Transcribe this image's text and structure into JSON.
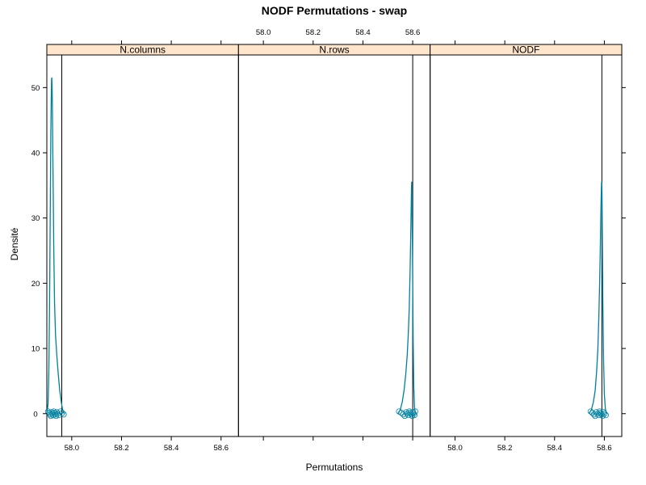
{
  "chart_data": {
    "type": "line",
    "title": "NODF Permutations - swap",
    "xlabel": "Permutations",
    "ylabel": "Densité",
    "xlim": [
      57.9,
      58.67
    ],
    "ylim": [
      -3.5,
      55
    ],
    "x_ticks": [
      58.0,
      58.2,
      58.4,
      58.6
    ],
    "x_tick_labels": [
      "58.0",
      "58.2",
      "58.4",
      "58.6"
    ],
    "y_ticks": [
      0,
      10,
      20,
      30,
      40,
      50
    ],
    "y_tick_labels": [
      "0",
      "10",
      "20",
      "30",
      "40",
      "50"
    ],
    "panels": [
      {
        "strip": "N.columns",
        "observed": 57.96,
        "rug": [
          57.905,
          57.91,
          57.913,
          57.916,
          57.919,
          57.922,
          57.925,
          57.928,
          57.931,
          57.934,
          57.937,
          57.94,
          57.944,
          57.948,
          57.955,
          57.962,
          57.968
        ],
        "density": {
          "x": [
            57.9,
            57.905,
            57.908,
            57.911,
            57.914,
            57.916,
            57.918,
            57.919,
            57.92,
            57.921,
            57.922,
            57.923,
            57.924,
            57.926,
            57.928,
            57.931,
            57.935,
            57.94,
            57.946,
            57.952,
            57.958,
            57.962,
            57.966,
            57.969
          ],
          "y": [
            0,
            1.5,
            6.5,
            17,
            32,
            43,
            49,
            51.3,
            51.5,
            50.5,
            48,
            44,
            40,
            33,
            25,
            17,
            12,
            9,
            6,
            3.5,
            1.8,
            0.9,
            0.3,
            0
          ]
        }
      },
      {
        "strip": "N.rows",
        "observed": 58.6,
        "rug": [
          58.545,
          58.555,
          58.562,
          58.568,
          58.574,
          58.578,
          58.582,
          58.586,
          58.59,
          58.594,
          58.598,
          58.601,
          58.604,
          58.607,
          58.61
        ],
        "density": {
          "x": [
            58.54,
            58.55,
            58.558,
            58.565,
            58.572,
            58.578,
            58.582,
            58.586,
            58.589,
            58.592,
            58.594,
            58.595,
            58.596,
            58.597,
            58.598,
            58.6,
            58.602,
            58.604,
            58.607,
            58.61
          ],
          "y": [
            0,
            0.6,
            1.8,
            3.5,
            6,
            9,
            12,
            16,
            21,
            27,
            32,
            34.5,
            35.5,
            34,
            29,
            20,
            11,
            4.5,
            1.2,
            0
          ]
        }
      },
      {
        "strip": "NODF",
        "observed": 58.59,
        "rug": [
          58.545,
          58.552,
          58.558,
          58.563,
          58.568,
          58.573,
          58.577,
          58.581,
          58.585,
          58.589,
          58.593,
          58.597,
          58.601,
          58.606
        ],
        "density": {
          "x": [
            58.538,
            58.548,
            58.556,
            58.563,
            58.569,
            58.574,
            58.578,
            58.581,
            58.584,
            58.586,
            58.588,
            58.589,
            58.59,
            58.591,
            58.592,
            58.594,
            58.597,
            58.6,
            58.604,
            58.608
          ],
          "y": [
            0,
            0.6,
            1.8,
            3.5,
            6.5,
            10,
            15,
            20,
            26,
            31,
            34.5,
            35.5,
            35,
            32,
            26,
            17,
            8,
            3,
            0.8,
            0
          ]
        }
      }
    ]
  }
}
